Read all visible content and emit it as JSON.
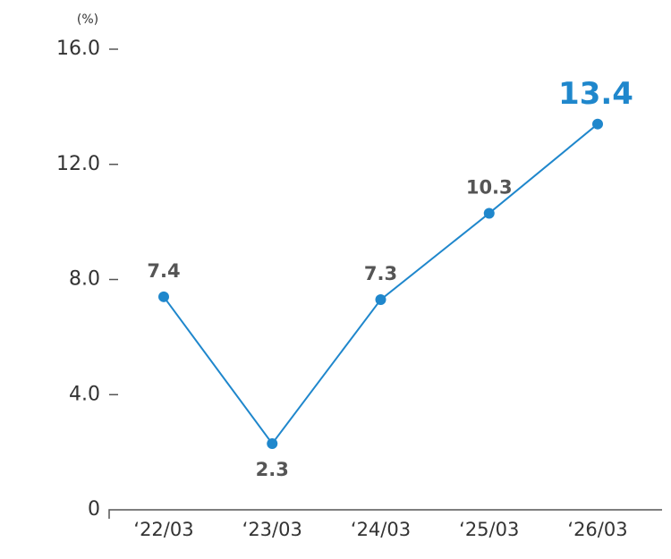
{
  "chart_data": {
    "type": "line",
    "y_label": "(%)",
    "categories": [
      "‘22/03",
      "‘23/03",
      "‘24/03",
      "‘25/03",
      "‘26/03"
    ],
    "values": [
      7.4,
      2.3,
      7.3,
      10.3,
      13.4
    ],
    "color": "#1f87cc",
    "highlight": {
      "index": 4,
      "color": "#1f87cc"
    },
    "ylim": [
      0,
      16
    ],
    "yticks": [
      0,
      {
        "value": 4,
        "label": "4.0"
      },
      {
        "value": 8,
        "label": "8.0"
      },
      {
        "value": 12,
        "label": "12.0"
      },
      {
        "value": 16,
        "label": "16.0"
      }
    ]
  }
}
